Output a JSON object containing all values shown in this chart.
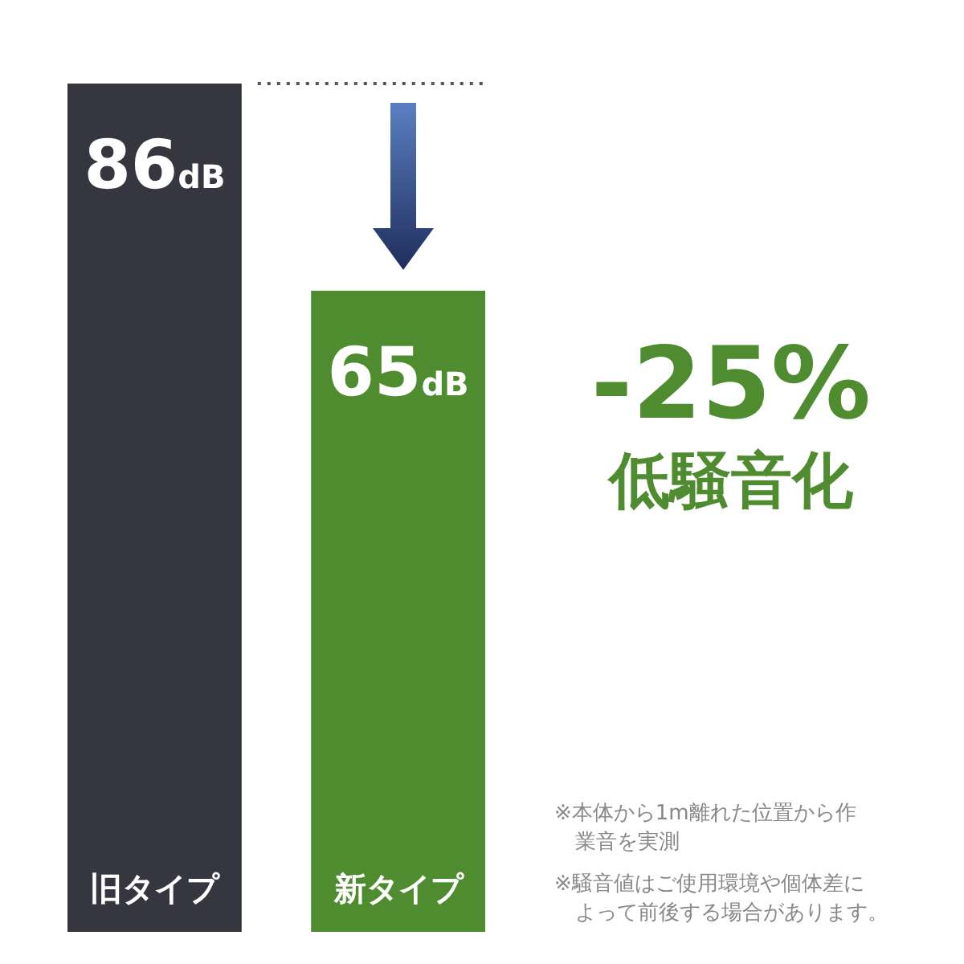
{
  "chart_data": {
    "type": "bar",
    "categories": [
      "旧タイプ",
      "新タイプ"
    ],
    "values": [
      86,
      65
    ],
    "colors": [
      "#363640",
      "#4f8c2f"
    ],
    "value_labels": [
      "86dB",
      "65dB"
    ],
    "ref_lines": [
      {
        "axis": "y",
        "value": 86,
        "line_style": "dotted",
        "color": "#555555"
      }
    ],
    "annotations": [
      "-25%",
      "低騒音化",
      "※本体から1m離れた位置から作業音を実測",
      "※騒音値はご使用環境や個体差によって前後する場合があります。"
    ]
  }
}
